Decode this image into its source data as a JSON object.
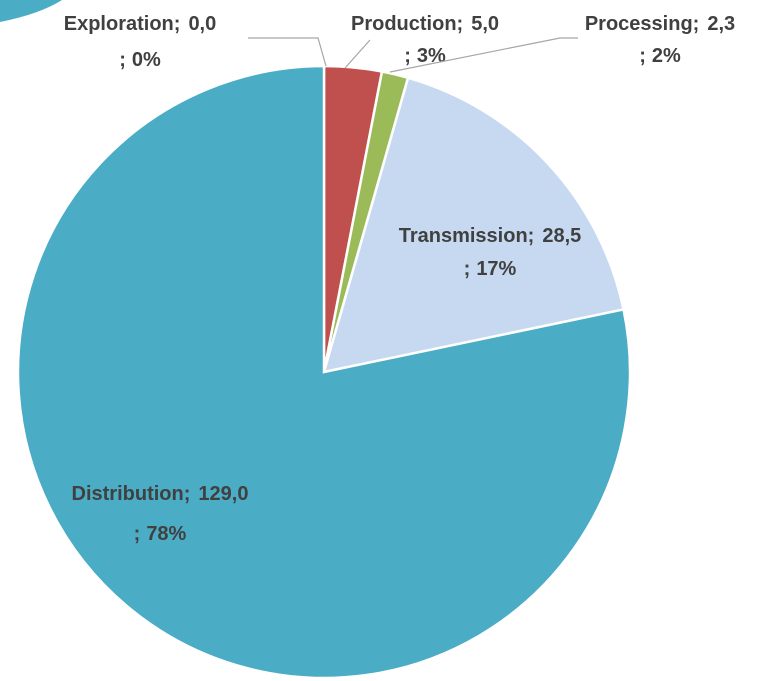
{
  "chart_data": {
    "type": "pie",
    "categories": [
      "Exploration",
      "Production",
      "Processing",
      "Transmission",
      "Distribution"
    ],
    "values": [
      0.0,
      5.0,
      2.3,
      28.5,
      129.0
    ],
    "value_labels": [
      "0,0",
      "5,0",
      "2,3",
      "28,5",
      "129,0"
    ],
    "percent_labels": [
      "0%",
      "3%",
      "2%",
      "17%",
      "78%"
    ],
    "separator": ";",
    "colors": [
      "#4f81bd",
      "#c0504d",
      "#9bbb59",
      "#c6d9f1",
      "#4bacc6"
    ]
  }
}
